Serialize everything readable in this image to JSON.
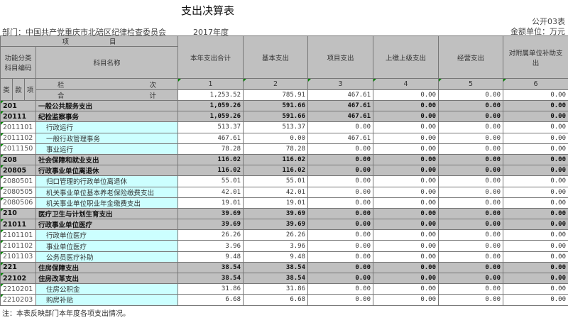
{
  "title": "支出决算表",
  "table_code": "公开03表",
  "unit": "金额单位：万元",
  "department": "部门：中国共产党重庆市北碚区纪律检查委员会",
  "year": "2017年度",
  "header": {
    "item": "项　　　　　　目",
    "code": "功能分类科目编码",
    "name": "科目名称",
    "lei": "类",
    "kuan": "款",
    "xiang": "项",
    "lanci_a": "栏",
    "lanci_b": "次",
    "heji_a": "合",
    "heji_b": "计",
    "columns": [
      "本年支出合计",
      "基本支出",
      "项目支出",
      "上缴上级支出",
      "经营支出",
      "对附属单位补助支出"
    ],
    "col_nums": [
      "1",
      "2",
      "3",
      "4",
      "5",
      "6"
    ]
  },
  "total": [
    "1,253.52",
    "785.91",
    "467.61",
    "0.00",
    "0.00",
    "0.00"
  ],
  "rows": [
    {
      "code": "201",
      "name": "一般公共服务支出",
      "bold": true,
      "v": [
        "1,059.26",
        "591.66",
        "467.61",
        "0.00",
        "0.00",
        "0.00"
      ]
    },
    {
      "code": "20111",
      "name": "纪检监察事务",
      "bold": true,
      "v": [
        "1,059.26",
        "591.66",
        "467.61",
        "0.00",
        "0.00",
        "0.00"
      ]
    },
    {
      "code": "2011101",
      "name": "行政运行",
      "v": [
        "513.37",
        "513.37",
        "0.00",
        "0.00",
        "0.00",
        "0.00"
      ]
    },
    {
      "code": "2011102",
      "name": "一般行政管理事务",
      "v": [
        "467.61",
        "0.00",
        "467.61",
        "0.00",
        "0.00",
        "0.00"
      ]
    },
    {
      "code": "2011150",
      "name": "事业运行",
      "v": [
        "78.28",
        "78.28",
        "0.00",
        "0.00",
        "0.00",
        "0.00"
      ]
    },
    {
      "code": "208",
      "name": "社会保障和就业支出",
      "bold": true,
      "v": [
        "116.02",
        "116.02",
        "0.00",
        "0.00",
        "0.00",
        "0.00"
      ]
    },
    {
      "code": "20805",
      "name": "行政事业单位离退休",
      "bold": true,
      "v": [
        "116.02",
        "116.02",
        "0.00",
        "0.00",
        "0.00",
        "0.00"
      ]
    },
    {
      "code": "2080501",
      "name": "归口管理的行政单位离退休",
      "v": [
        "55.01",
        "55.01",
        "0.00",
        "0.00",
        "0.00",
        "0.00"
      ]
    },
    {
      "code": "2080505",
      "name": "机关事业单位基本养老保险缴费支出",
      "v": [
        "42.01",
        "42.01",
        "0.00",
        "0.00",
        "0.00",
        "0.00"
      ]
    },
    {
      "code": "2080506",
      "name": "机关事业单位职业年金缴费支出",
      "v": [
        "19.01",
        "19.01",
        "0.00",
        "0.00",
        "0.00",
        "0.00"
      ]
    },
    {
      "code": "210",
      "name": "医疗卫生与计划生育支出",
      "bold": true,
      "v": [
        "39.69",
        "39.69",
        "0.00",
        "0.00",
        "0.00",
        "0.00"
      ]
    },
    {
      "code": "21011",
      "name": "行政事业单位医疗",
      "bold": true,
      "v": [
        "39.69",
        "39.69",
        "0.00",
        "0.00",
        "0.00",
        "0.00"
      ]
    },
    {
      "code": "2101101",
      "name": "行政单位医疗",
      "v": [
        "26.26",
        "26.26",
        "0.00",
        "0.00",
        "0.00",
        "0.00"
      ]
    },
    {
      "code": "2101102",
      "name": "事业单位医疗",
      "v": [
        "3.96",
        "3.96",
        "0.00",
        "0.00",
        "0.00",
        "0.00"
      ]
    },
    {
      "code": "2101103",
      "name": "公务员医疗补助",
      "v": [
        "9.48",
        "9.48",
        "0.00",
        "0.00",
        "0.00",
        "0.00"
      ]
    },
    {
      "code": "221",
      "name": "住房保障支出",
      "bold": true,
      "v": [
        "38.54",
        "38.54",
        "0.00",
        "0.00",
        "0.00",
        "0.00"
      ]
    },
    {
      "code": "22102",
      "name": "住房改革支出",
      "bold": true,
      "v": [
        "38.54",
        "38.54",
        "0.00",
        "0.00",
        "0.00",
        "0.00"
      ]
    },
    {
      "code": "2210201",
      "name": "住房公积金",
      "v": [
        "31.86",
        "31.86",
        "0.00",
        "0.00",
        "0.00",
        "0.00"
      ]
    },
    {
      "code": "2210203",
      "name": "购房补贴",
      "v": [
        "6.68",
        "6.68",
        "0.00",
        "0.00",
        "0.00",
        "0.00"
      ]
    }
  ],
  "note": "注：本表反映部门本年度各项支出情况。",
  "colors": {
    "header_bg": "#c0c0c0",
    "name_cell_bg": "#ccffff"
  }
}
